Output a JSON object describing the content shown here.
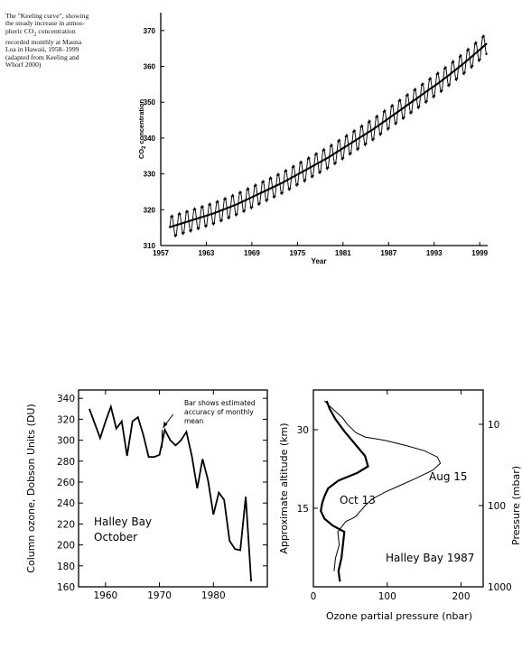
{
  "caption": {
    "l1": "The \"Keeling curve\", showing",
    "l2": "the steady increase in atmos-",
    "l3": "pheric CO",
    "l3sub": "2",
    "l3b": " concentration",
    "l4": "recorded monthly at Mauna",
    "l5": "Loa in Hawaii, 1958–1999",
    "l6": "(adapted from Keeling and",
    "l7": "Whorf 2000)"
  },
  "chart_data": [
    {
      "type": "line",
      "title": "",
      "xlabel": "Year",
      "ylabel": "CO2 concentration",
      "xlim": [
        1957,
        2001
      ],
      "ylim": [
        310,
        375
      ],
      "xticks": [
        "1957",
        "1963",
        "1969",
        "1975",
        "1981",
        "1987",
        "1993",
        "1999"
      ],
      "yticks": [
        "310",
        "320",
        "330",
        "340",
        "350",
        "360",
        "370"
      ],
      "series": [
        {
          "x": [
            1958,
            1961,
            1964,
            1967,
            1970,
            1973,
            1976,
            1979,
            1982,
            1985,
            1988,
            1991,
            1994,
            1997,
            2000
          ],
          "values": [
            315.0,
            317.0,
            319.0,
            321.5,
            324.5,
            327.5,
            331.0,
            334.5,
            338.5,
            342.5,
            347.0,
            351.5,
            356.0,
            361.0,
            366.5
          ]
        }
      ],
      "seasonal_amplitude": 3.2,
      "grid": false
    },
    {
      "type": "line",
      "title": "",
      "xlabel": "",
      "ylabel": "Column ozone, Dobson Units (DU)",
      "xlim": [
        1955,
        1990
      ],
      "ylim": [
        160,
        345
      ],
      "xticks": [
        "1960",
        "1970",
        "1980"
      ],
      "yticks": [
        "160",
        "180",
        "200",
        "220",
        "240",
        "260",
        "280",
        "300",
        "320",
        "340"
      ],
      "annotations": [
        "Bar shows estimated",
        "accuracy of monthly",
        "mean",
        "Halley Bay",
        "October"
      ],
      "series": [
        {
          "x": [
            1957,
            1958,
            1959,
            1960,
            1961,
            1962,
            1963,
            1964,
            1965,
            1966,
            1967,
            1968,
            1969,
            1970,
            1971,
            1972,
            1973,
            1974,
            1975,
            1976,
            1977,
            1978,
            1979,
            1980,
            1981,
            1982,
            1983,
            1984,
            1985,
            1986,
            1987
          ],
          "values": [
            330,
            316,
            302,
            318,
            332,
            311,
            318,
            285,
            318,
            322,
            305,
            284,
            284,
            286,
            310,
            300,
            295,
            300,
            308,
            285,
            254,
            282,
            262,
            229,
            250,
            243,
            204,
            196,
            195,
            246,
            165
          ]
        }
      ],
      "error_bar": {
        "x": 1970.5,
        "low": 293,
        "high": 310
      },
      "grid": false
    },
    {
      "type": "line",
      "title": "",
      "xlabel": "Ozone partial pressure (nbar)",
      "ylabel": "Approximate altitude (km)",
      "ylabel_right": "Pressure (mbar)",
      "xlim": [
        0,
        230
      ],
      "xticks": [
        "0",
        "100",
        "200"
      ],
      "yticks": [
        "15",
        "30"
      ],
      "yticks_right": [
        "10",
        "100",
        "1000"
      ],
      "annotations": [
        "Aug 15",
        "Oct 13",
        "Halley Bay 1987"
      ],
      "series": [
        {
          "name": "Aug 15",
          "x": [
            28,
            30,
            35,
            33,
            44,
            52,
            58,
            62,
            66,
            70,
            80,
            96,
            118,
            140,
            162,
            172,
            168,
            150,
            125,
            96,
            70,
            58,
            52,
            46,
            40,
            30,
            22,
            15
          ],
          "y": [
            3.0,
            5.5,
            8.0,
            10.5,
            12.5,
            13.0,
            13.5,
            14.2,
            14.8,
            15.5,
            16.8,
            18.0,
            19.4,
            20.8,
            22.3,
            23.6,
            24.8,
            26.0,
            27.0,
            28.0,
            28.6,
            29.4,
            30.2,
            31.0,
            32.2,
            33.5,
            34.5,
            35.5
          ]
        },
        {
          "name": "Oct 13",
          "x": [
            36,
            34,
            38,
            40,
            42,
            26,
            15,
            10,
            12,
            15,
            20,
            34,
            60,
            74,
            70,
            55,
            42,
            30,
            22,
            18
          ],
          "y": [
            1.0,
            3.0,
            5.5,
            8.0,
            10.5,
            11.7,
            13.0,
            14.5,
            16.0,
            17.3,
            18.8,
            20.3,
            21.8,
            23.0,
            25.0,
            27.5,
            29.7,
            32.0,
            34.0,
            35.5
          ]
        }
      ],
      "grid": false
    }
  ]
}
